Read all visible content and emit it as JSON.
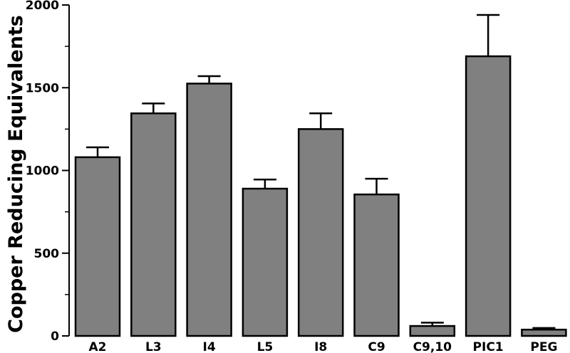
{
  "chart_data": {
    "type": "bar",
    "title": "",
    "xlabel": "",
    "ylabel": "Copper Reducing Equivalents",
    "ylim": [
      0,
      2000
    ],
    "yticks_major": [
      0,
      500,
      1000,
      1500,
      2000
    ],
    "yticks_minor": [
      250,
      750,
      1250,
      1750
    ],
    "grid": false,
    "legend": "none",
    "bar_color": "#808080",
    "categories": [
      "A2",
      "L3",
      "I4",
      "L5",
      "I8",
      "C9",
      "C9,10",
      "PIC1",
      "PEG"
    ],
    "values": [
      1080,
      1345,
      1525,
      890,
      1250,
      855,
      60,
      1690,
      38
    ],
    "error_upper": [
      60,
      60,
      45,
      55,
      95,
      95,
      20,
      250,
      10
    ]
  }
}
